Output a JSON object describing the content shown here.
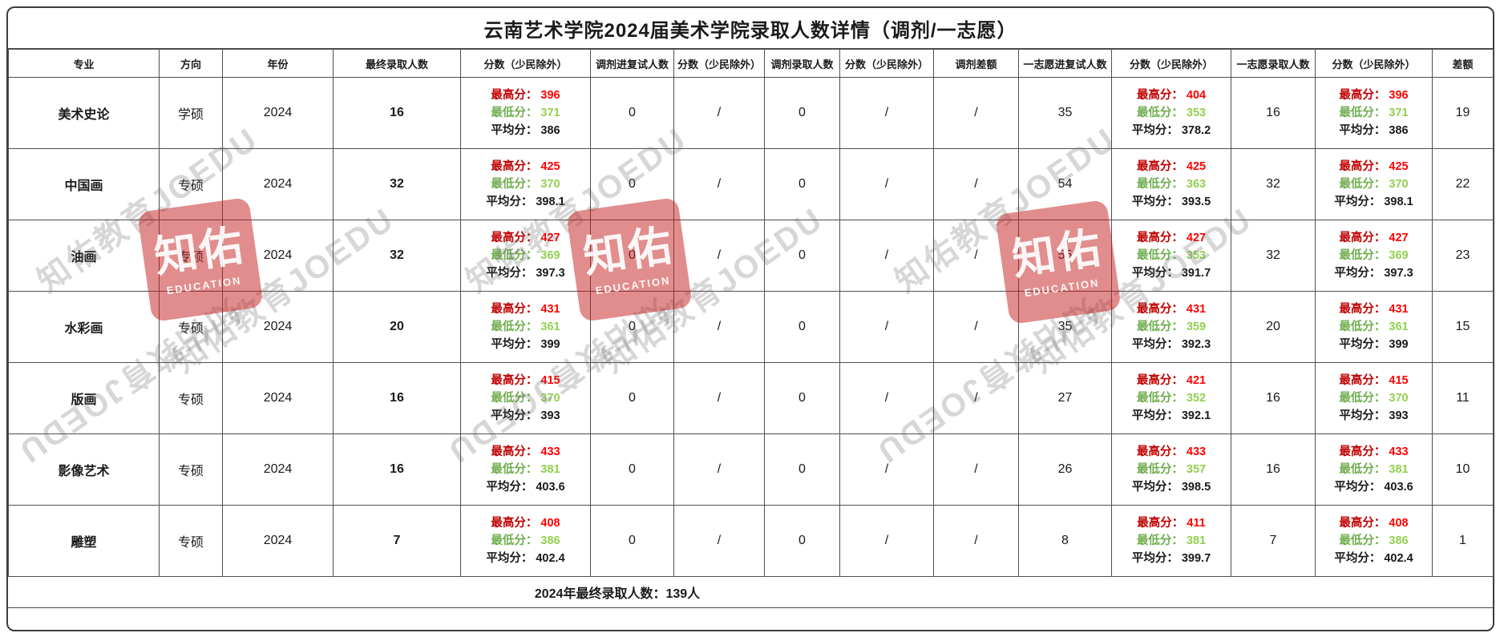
{
  "title": "云南艺术学院2024届美术学院录取人数详情（调剂/一志愿）",
  "columns": [
    "专业",
    "方向",
    "年份",
    "最终录取人数",
    "分数（少民除外）",
    "调剂进复试人数",
    "分数（少民除外）",
    "调剂录取人数",
    "分数（少民除外）",
    "调剂差额",
    "一志愿进复试人数",
    "分数（少民除外）",
    "一志愿录取人数",
    "分数（少民除外）",
    "差额"
  ],
  "score_labels": {
    "max": "最高分：",
    "min": "最低分：",
    "avg": "平均分："
  },
  "row_fields": [
    {
      "key": "major",
      "type": "text",
      "bold": true
    },
    {
      "key": "direction",
      "type": "text"
    },
    {
      "key": "year",
      "type": "text"
    },
    {
      "key": "final_count",
      "type": "text",
      "bold": true
    },
    {
      "key": "final_score",
      "type": "score"
    },
    {
      "key": "tj_fushi_count",
      "type": "text"
    },
    {
      "key": "tj_fushi_score",
      "type": "slash"
    },
    {
      "key": "tj_luqu_count",
      "type": "text"
    },
    {
      "key": "tj_luqu_score",
      "type": "slash"
    },
    {
      "key": "tj_diff",
      "type": "slash"
    },
    {
      "key": "yzy_fushi_count",
      "type": "text"
    },
    {
      "key": "yzy_fushi_score",
      "type": "score"
    },
    {
      "key": "yzy_luqu_count",
      "type": "text"
    },
    {
      "key": "yzy_luqu_score",
      "type": "score"
    },
    {
      "key": "diff",
      "type": "text"
    }
  ],
  "rows": [
    {
      "major": "美术史论",
      "direction": "学硕",
      "year": "2024",
      "final_count": "16",
      "final_score": {
        "max": "396",
        "min": "371",
        "avg": "386"
      },
      "tj_fushi_count": "0",
      "tj_fushi_score": "/",
      "tj_luqu_count": "0",
      "tj_luqu_score": "/",
      "tj_diff": "/",
      "yzy_fushi_count": "35",
      "yzy_fushi_score": {
        "max": "404",
        "min": "353",
        "avg": "378.2"
      },
      "yzy_luqu_count": "16",
      "yzy_luqu_score": {
        "max": "396",
        "min": "371",
        "avg": "386"
      },
      "diff": "19"
    },
    {
      "major": "中国画",
      "direction": "专硕",
      "year": "2024",
      "final_count": "32",
      "final_score": {
        "max": "425",
        "min": "370",
        "avg": "398.1"
      },
      "tj_fushi_count": "0",
      "tj_fushi_score": "/",
      "tj_luqu_count": "0",
      "tj_luqu_score": "/",
      "tj_diff": "/",
      "yzy_fushi_count": "54",
      "yzy_fushi_score": {
        "max": "425",
        "min": "363",
        "avg": "393.5"
      },
      "yzy_luqu_count": "32",
      "yzy_luqu_score": {
        "max": "425",
        "min": "370",
        "avg": "398.1"
      },
      "diff": "22"
    },
    {
      "major": "油画",
      "direction": "专硕",
      "year": "2024",
      "final_count": "32",
      "final_score": {
        "max": "427",
        "min": "369",
        "avg": "397.3"
      },
      "tj_fushi_count": "0",
      "tj_fushi_score": "/",
      "tj_luqu_count": "0",
      "tj_luqu_score": "/",
      "tj_diff": "/",
      "yzy_fushi_count": "55",
      "yzy_fushi_score": {
        "max": "427",
        "min": "353",
        "avg": "391.7"
      },
      "yzy_luqu_count": "32",
      "yzy_luqu_score": {
        "max": "427",
        "min": "369",
        "avg": "397.3"
      },
      "diff": "23"
    },
    {
      "major": "水彩画",
      "direction": "专硕",
      "year": "2024",
      "final_count": "20",
      "final_score": {
        "max": "431",
        "min": "361",
        "avg": "399"
      },
      "tj_fushi_count": "0",
      "tj_fushi_score": "/",
      "tj_luqu_count": "0",
      "tj_luqu_score": "/",
      "tj_diff": "/",
      "yzy_fushi_count": "35",
      "yzy_fushi_score": {
        "max": "431",
        "min": "359",
        "avg": "392.3"
      },
      "yzy_luqu_count": "20",
      "yzy_luqu_score": {
        "max": "431",
        "min": "361",
        "avg": "399"
      },
      "diff": "15"
    },
    {
      "major": "版画",
      "direction": "专硕",
      "year": "2024",
      "final_count": "16",
      "final_score": {
        "max": "415",
        "min": "370",
        "avg": "393"
      },
      "tj_fushi_count": "0",
      "tj_fushi_score": "/",
      "tj_luqu_count": "0",
      "tj_luqu_score": "/",
      "tj_diff": "/",
      "yzy_fushi_count": "27",
      "yzy_fushi_score": {
        "max": "421",
        "min": "352",
        "avg": "392.1"
      },
      "yzy_luqu_count": "16",
      "yzy_luqu_score": {
        "max": "415",
        "min": "370",
        "avg": "393"
      },
      "diff": "11"
    },
    {
      "major": "影像艺术",
      "direction": "专硕",
      "year": "2024",
      "final_count": "16",
      "final_score": {
        "max": "433",
        "min": "381",
        "avg": "403.6"
      },
      "tj_fushi_count": "0",
      "tj_fushi_score": "/",
      "tj_luqu_count": "0",
      "tj_luqu_score": "/",
      "tj_diff": "/",
      "yzy_fushi_count": "26",
      "yzy_fushi_score": {
        "max": "433",
        "min": "357",
        "avg": "398.5"
      },
      "yzy_luqu_count": "16",
      "yzy_luqu_score": {
        "max": "433",
        "min": "381",
        "avg": "403.6"
      },
      "diff": "10"
    },
    {
      "major": "雕塑",
      "direction": "专硕",
      "year": "2024",
      "final_count": "7",
      "final_score": {
        "max": "408",
        "min": "386",
        "avg": "402.4"
      },
      "tj_fushi_count": "0",
      "tj_fushi_score": "/",
      "tj_luqu_count": "0",
      "tj_luqu_score": "/",
      "tj_diff": "/",
      "yzy_fushi_count": "8",
      "yzy_fushi_score": {
        "max": "411",
        "min": "381",
        "avg": "399.7"
      },
      "yzy_luqu_count": "7",
      "yzy_luqu_score": {
        "max": "408",
        "min": "386",
        "avg": "402.4"
      },
      "diff": "1"
    }
  ],
  "footer": "2024年最终录取人数：139人",
  "watermark": {
    "text": "知佑教育JOEDU",
    "badge_line1": "知佑",
    "badge_line2": "EDUCATION"
  },
  "colors": {
    "max_label": "#c00000",
    "max_value": "#ff0000",
    "min_label": "#6fae4e",
    "min_value": "#92d050",
    "grid_border": "#4f4f4f",
    "badge_red": "#c31c1c"
  }
}
